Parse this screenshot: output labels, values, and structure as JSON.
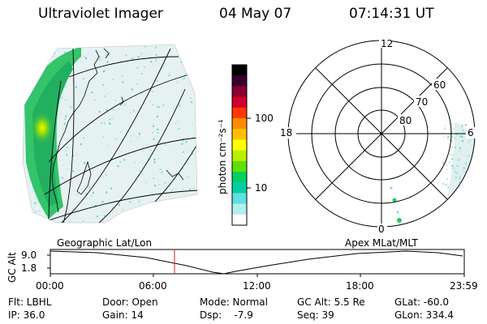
{
  "header": {
    "instrument": "Ultraviolet Imager",
    "date": "04 May 07",
    "time": "07:14:31 UT"
  },
  "colorbar": {
    "unit_label": "photon cm⁻²s⁻¹",
    "ticks": [
      "100",
      "10"
    ],
    "colors": [
      "#000000",
      "#3a0030",
      "#8a0030",
      "#d2002a",
      "#ff3a00",
      "#ff8c00",
      "#ffc000",
      "#ffff00",
      "#b8f000",
      "#60e000",
      "#00d060",
      "#00d0a0",
      "#60e0e0",
      "#b0f0f0",
      "#ffffff"
    ]
  },
  "polar_plot": {
    "mlt_labels": [
      "12",
      "18",
      "6",
      "0"
    ],
    "lat_labels": [
      "60",
      "70",
      "80"
    ]
  },
  "timeline": {
    "left_label": "Geographic Lat/Lon",
    "right_label": "Apex MLat/MLT",
    "axis_title": "GC Alt",
    "y_ticks": [
      "9.0",
      "1.8"
    ],
    "x_ticks": [
      "00:00",
      "06:00",
      "12:00",
      "18:00",
      "23:59"
    ],
    "current_marker_color": "#e02020"
  },
  "info": {
    "filter": "Flt: LBHL",
    "ip": "IP: 36.0",
    "door": "Door: Open",
    "gain": "Gain: 14",
    "mode": "Mode: Normal",
    "dsp": "Dsp:    -7.9",
    "gc_alt": "GC Alt: 5.5 Re",
    "seq": "Seq: 39",
    "glat": "GLat: -60.0",
    "glon": "GLon: 334.4"
  }
}
